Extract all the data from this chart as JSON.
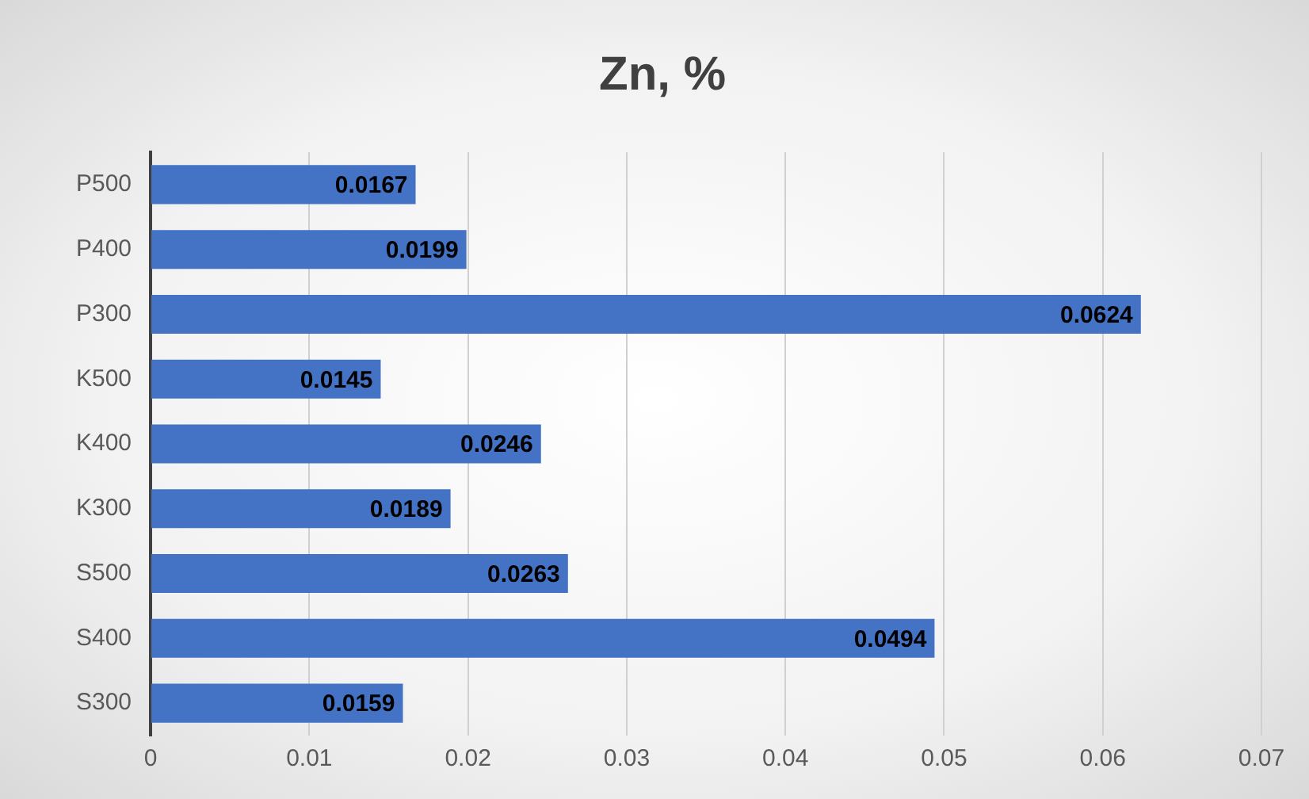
{
  "chart_data": {
    "type": "bar",
    "orientation": "horizontal",
    "title": "Zn, %",
    "categories": [
      "P500",
      "P400",
      "P300",
      "K500",
      "K400",
      "K300",
      "S500",
      "S400",
      "S300"
    ],
    "values": [
      0.0167,
      0.0199,
      0.0624,
      0.0145,
      0.0246,
      0.0189,
      0.0263,
      0.0494,
      0.0159
    ],
    "color": "#4472c4",
    "xlim": [
      0,
      0.07
    ],
    "xticks": [
      0,
      0.01,
      0.02,
      0.03,
      0.04,
      0.05,
      0.06,
      0.07
    ],
    "grid": "x",
    "data_labels": true
  }
}
